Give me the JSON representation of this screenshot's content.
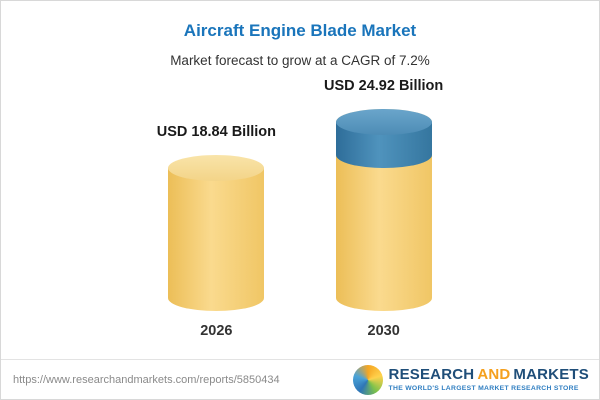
{
  "header": {
    "title": "Aircraft Engine Blade Market",
    "subtitle": "Market forecast to grow at a CAGR of 7.2%"
  },
  "chart_data": {
    "type": "bar",
    "title": "Aircraft Engine Blade Market",
    "subtitle": "Market forecast to grow at a CAGR of 7.2%",
    "categories": [
      "2026",
      "2030"
    ],
    "values": [
      18.84,
      24.92
    ],
    "value_labels": [
      "USD 18.84 Billion",
      "USD 24.92 Billion"
    ],
    "unit": "USD Billion",
    "cagr": "7.2%",
    "xlabel": "",
    "ylabel": "",
    "legend": [],
    "colors": {
      "bar_body": "#f6cf70",
      "bar_top_segment": "#4a86ae",
      "title": "#1a75bb"
    }
  },
  "footer": {
    "url": "https://www.researchandmarkets.com/reports/5850434",
    "logo": {
      "research": "RESEARCH",
      "and": "AND",
      "markets": "MARKETS",
      "tagline": "THE WORLD'S LARGEST MARKET RESEARCH STORE"
    }
  }
}
